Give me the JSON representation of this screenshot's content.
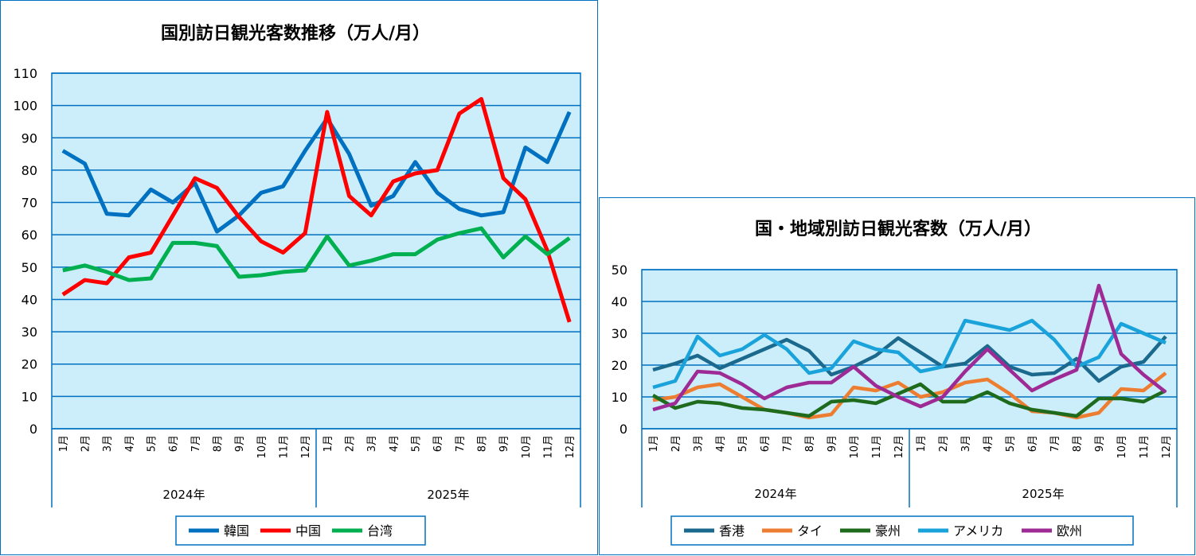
{
  "chart_data": [
    {
      "type": "line",
      "title": "国別訪日観光客数推移（万人/月）",
      "ylim": [
        0,
        110
      ],
      "yticks": [
        0,
        10,
        20,
        30,
        40,
        50,
        60,
        70,
        80,
        90,
        100,
        110
      ],
      "months": [
        "1月",
        "2月",
        "3月",
        "4月",
        "5月",
        "6月",
        "7月",
        "8月",
        "9月",
        "10月",
        "11月",
        "12月"
      ],
      "years": [
        "2024年",
        "2025年"
      ],
      "grid": true,
      "legend": "bottom",
      "series": [
        {
          "name": "韓国",
          "color": "#0070C0",
          "values": [
            86,
            82,
            66.5,
            66,
            74,
            70,
            76,
            61,
            66,
            73,
            75,
            86,
            96,
            85,
            69,
            72,
            82.5,
            73,
            68,
            66,
            67,
            87,
            82.5,
            98
          ]
        },
        {
          "name": "中国",
          "color": "#FF0000",
          "values": [
            41.5,
            46,
            45,
            53,
            54.5,
            66,
            77.5,
            74.5,
            65.5,
            58,
            54.5,
            60.5,
            98,
            72,
            66,
            76.5,
            79,
            80,
            97.5,
            102,
            77.5,
            71,
            55,
            33
          ]
        },
        {
          "name": "台湾",
          "color": "#00B050",
          "values": [
            49,
            50.5,
            48.5,
            46,
            46.5,
            57.5,
            57.5,
            56.5,
            47,
            47.5,
            48.5,
            49,
            59.5,
            50.5,
            52,
            54,
            54,
            58.5,
            60.5,
            62,
            53,
            59.5,
            54,
            59
          ]
        }
      ]
    },
    {
      "type": "line",
      "title": "国・地域別訪日観光客数（万人/月）",
      "ylim": [
        0,
        50
      ],
      "yticks": [
        0,
        10,
        20,
        30,
        40,
        50
      ],
      "months": [
        "1月",
        "2月",
        "3月",
        "4月",
        "5月",
        "6月",
        "7月",
        "8月",
        "9月",
        "10月",
        "11月",
        "12月"
      ],
      "years": [
        "2024年",
        "2025年"
      ],
      "grid": true,
      "legend": "bottom",
      "series": [
        {
          "name": "香港",
          "color": "#1B6A8E",
          "values": [
            18.5,
            20.5,
            23,
            19,
            22,
            25,
            28,
            24.5,
            17,
            19.5,
            23,
            28.5,
            24,
            19.5,
            20.5,
            26,
            19.5,
            17,
            17.5,
            22,
            15,
            19.5,
            21,
            29
          ]
        },
        {
          "name": "タイ",
          "color": "#ED7D31",
          "values": [
            9,
            10,
            13,
            14,
            10,
            6,
            5,
            3.5,
            4.5,
            13,
            12,
            14.5,
            10,
            11.5,
            14.5,
            15.5,
            11,
            5.5,
            5,
            3.5,
            5,
            12.5,
            12,
            17.5
          ]
        },
        {
          "name": "豪州",
          "color": "#1E6B1E",
          "values": [
            10.5,
            6.5,
            8.5,
            8,
            6.5,
            6,
            5,
            4,
            8.5,
            9,
            8,
            11,
            14,
            8.5,
            8.5,
            11.5,
            8,
            6,
            5,
            4,
            9.5,
            9.5,
            8.5,
            12
          ]
        },
        {
          "name": "アメリカ",
          "color": "#1AA3DB",
          "values": [
            13,
            15,
            29,
            23,
            25,
            29.5,
            25,
            17.5,
            19,
            27.5,
            25,
            24,
            18,
            19.5,
            34,
            32.5,
            31,
            34,
            28,
            19.5,
            22.5,
            33,
            30,
            27
          ]
        },
        {
          "name": "欧州",
          "color": "#9E2A96",
          "values": [
            6,
            8,
            18,
            17.5,
            14,
            9.5,
            13,
            14.5,
            14.5,
            19.5,
            13.5,
            10,
            7,
            10,
            18,
            25,
            18.5,
            12,
            15.5,
            18.5,
            45,
            23.5,
            17,
            11.5
          ]
        }
      ]
    }
  ]
}
